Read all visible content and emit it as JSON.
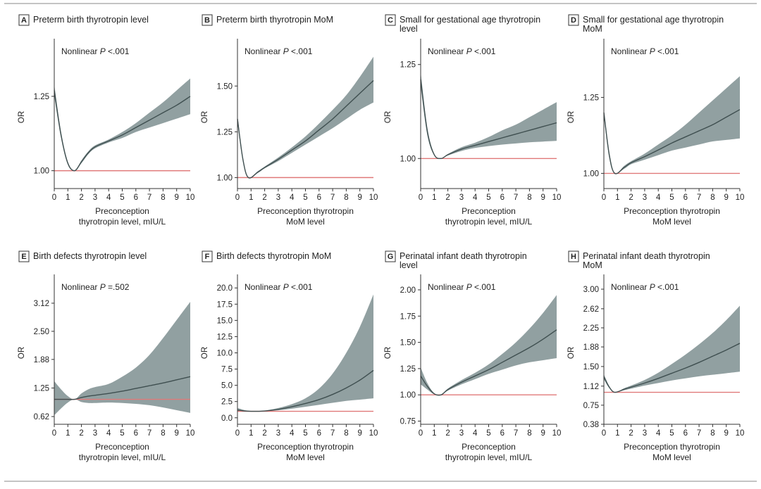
{
  "colors": {
    "band": "#8b9b9c",
    "line": "#3f4f50",
    "reference": "#e07a7a",
    "axis": "#333333",
    "border": "#888888"
  },
  "chart_data": [
    {
      "letter": "A",
      "title": [
        "Preterm birth thyrotropin level"
      ],
      "type": "line",
      "annotation_prefix": "Nonlinear ",
      "annotation_p": "P",
      "annotation_value": " <.001",
      "ylabel": "OR",
      "xlabel": [
        "Preconception",
        "thyrotropin level, mIU/L"
      ],
      "xlim": [
        0,
        10
      ],
      "ylim": [
        0.94,
        1.42
      ],
      "xticks": [
        0,
        1,
        2,
        3,
        4,
        5,
        6,
        7,
        8,
        9,
        10
      ],
      "yticks": [
        {
          "v": 1.0,
          "label": "1.00"
        },
        {
          "v": 1.25,
          "label": "1.25"
        }
      ],
      "reference": 1.0,
      "x": [
        0,
        0.5,
        1,
        1.5,
        2,
        2.5,
        3,
        4,
        5,
        6,
        7,
        8,
        9,
        10
      ],
      "y": [
        1.27,
        1.12,
        1.025,
        1.0,
        1.03,
        1.06,
        1.08,
        1.1,
        1.12,
        1.145,
        1.17,
        1.195,
        1.22,
        1.25
      ],
      "lower": [
        1.25,
        1.11,
        1.02,
        1.0,
        1.025,
        1.055,
        1.075,
        1.095,
        1.11,
        1.13,
        1.145,
        1.16,
        1.175,
        1.19
      ],
      "upper": [
        1.29,
        1.13,
        1.03,
        1.0,
        1.035,
        1.065,
        1.085,
        1.105,
        1.13,
        1.16,
        1.195,
        1.23,
        1.27,
        1.31
      ]
    },
    {
      "letter": "B",
      "title": [
        "Preterm birth thyrotropin MoM"
      ],
      "type": "line",
      "annotation_prefix": "Nonlinear ",
      "annotation_p": "P",
      "annotation_value": " <.001",
      "ylabel": "OR",
      "xlabel": [
        "Preconception thyrotropin",
        "MoM level"
      ],
      "xlim": [
        0,
        10
      ],
      "ylim": [
        0.94,
        1.72
      ],
      "xticks": [
        0,
        1,
        2,
        3,
        4,
        5,
        6,
        7,
        8,
        9,
        10
      ],
      "yticks": [
        {
          "v": 1.0,
          "label": "1.00"
        },
        {
          "v": 1.25,
          "label": "1.25"
        },
        {
          "v": 1.5,
          "label": "1.50"
        }
      ],
      "reference": 1.0,
      "x": [
        0,
        0.4,
        0.8,
        1.5,
        2,
        3,
        4,
        5,
        6,
        7,
        8,
        9,
        10
      ],
      "y": [
        1.32,
        1.1,
        1.0,
        1.03,
        1.055,
        1.1,
        1.15,
        1.2,
        1.26,
        1.32,
        1.39,
        1.46,
        1.53
      ],
      "lower": [
        1.3,
        1.09,
        1.0,
        1.025,
        1.05,
        1.09,
        1.135,
        1.18,
        1.225,
        1.27,
        1.32,
        1.37,
        1.41
      ],
      "upper": [
        1.34,
        1.11,
        1.0,
        1.035,
        1.06,
        1.11,
        1.165,
        1.225,
        1.295,
        1.37,
        1.45,
        1.55,
        1.66
      ]
    },
    {
      "letter": "C",
      "title": [
        "Small for gestational age thyrotropin",
        "level"
      ],
      "type": "line",
      "annotation_prefix": "Nonlinear ",
      "annotation_p": "P",
      "annotation_value": " <.001",
      "ylabel": "OR",
      "xlabel": [
        "Preconception",
        "thyrotropin level, mIU/L"
      ],
      "xlim": [
        0,
        10
      ],
      "ylim": [
        0.92,
        1.3
      ],
      "xticks": [
        0,
        1,
        2,
        3,
        4,
        5,
        6,
        7,
        8,
        9,
        10
      ],
      "yticks": [
        {
          "v": 1.0,
          "label": "1.00"
        },
        {
          "v": 1.25,
          "label": "1.25"
        }
      ],
      "reference": 1.0,
      "x": [
        0,
        0.5,
        1,
        1.5,
        2,
        3,
        4,
        5,
        6,
        7,
        8,
        9,
        10
      ],
      "y": [
        1.21,
        1.07,
        1.01,
        1.0,
        1.01,
        1.025,
        1.035,
        1.045,
        1.055,
        1.065,
        1.075,
        1.085,
        1.095
      ],
      "lower": [
        1.19,
        1.06,
        1.008,
        1.0,
        1.008,
        1.02,
        1.028,
        1.033,
        1.037,
        1.04,
        1.043,
        1.045,
        1.047
      ],
      "upper": [
        1.23,
        1.08,
        1.012,
        1.0,
        1.012,
        1.03,
        1.042,
        1.057,
        1.075,
        1.09,
        1.11,
        1.13,
        1.15
      ]
    },
    {
      "letter": "D",
      "title": [
        "Small for gestational age thyrotropin",
        "MoM"
      ],
      "type": "line",
      "annotation_prefix": "Nonlinear ",
      "annotation_p": "P",
      "annotation_value": " <.001",
      "ylabel": "OR",
      "xlabel": [
        "Preconception thyrotropin",
        "MoM level"
      ],
      "xlim": [
        0,
        10
      ],
      "ylim": [
        0.95,
        1.42
      ],
      "xticks": [
        0,
        1,
        2,
        3,
        4,
        5,
        6,
        7,
        8,
        9,
        10
      ],
      "yticks": [
        {
          "v": 1.0,
          "label": "1.00"
        },
        {
          "v": 1.25,
          "label": "1.25"
        }
      ],
      "reference": 1.0,
      "x": [
        0,
        0.4,
        0.8,
        1.5,
        2,
        3,
        4,
        5,
        6,
        7,
        8,
        9,
        10
      ],
      "y": [
        1.2,
        1.06,
        1.0,
        1.02,
        1.035,
        1.055,
        1.077,
        1.1,
        1.12,
        1.14,
        1.16,
        1.185,
        1.21
      ],
      "lower": [
        1.19,
        1.05,
        1.0,
        1.015,
        1.03,
        1.045,
        1.06,
        1.075,
        1.085,
        1.095,
        1.105,
        1.11,
        1.115
      ],
      "upper": [
        1.21,
        1.07,
        1.0,
        1.025,
        1.04,
        1.065,
        1.095,
        1.125,
        1.16,
        1.2,
        1.24,
        1.28,
        1.32
      ]
    },
    {
      "letter": "E",
      "title": [
        "Birth defects thyrotropin level"
      ],
      "type": "line",
      "annotation_prefix": "Nonlinear ",
      "annotation_p": "P",
      "annotation_value": " =.502",
      "ylabel": "OR",
      "xlabel": [
        "Preconception",
        "thyrotropin level, mIU/L"
      ],
      "xlim": [
        0,
        10
      ],
      "ylim": [
        0.45,
        3.6
      ],
      "xticks": [
        0,
        1,
        2,
        3,
        4,
        5,
        6,
        7,
        8,
        9,
        10
      ],
      "yticks": [
        {
          "v": 0.62,
          "label": "0.62"
        },
        {
          "v": 1.25,
          "label": "1.25"
        },
        {
          "v": 1.88,
          "label": "1.88"
        },
        {
          "v": 2.5,
          "label": "2.50"
        },
        {
          "v": 3.12,
          "label": "3.12"
        }
      ],
      "reference": 1.0,
      "x": [
        0,
        0.5,
        1,
        1.5,
        2,
        2.5,
        3,
        4,
        5,
        6,
        7,
        8,
        9,
        10
      ],
      "y": [
        1.0,
        1.0,
        1.0,
        1.0,
        1.04,
        1.07,
        1.09,
        1.13,
        1.18,
        1.24,
        1.3,
        1.36,
        1.43,
        1.5
      ],
      "lower": [
        0.65,
        0.8,
        0.93,
        1.0,
        0.94,
        0.92,
        0.92,
        0.93,
        0.92,
        0.9,
        0.87,
        0.82,
        0.76,
        0.7
      ],
      "upper": [
        1.4,
        1.22,
        1.07,
        1.0,
        1.13,
        1.22,
        1.27,
        1.34,
        1.5,
        1.7,
        1.98,
        2.35,
        2.75,
        3.15
      ]
    },
    {
      "letter": "F",
      "title": [
        "Birth defects thyrotropin MoM"
      ],
      "type": "line",
      "annotation_prefix": "Nonlinear ",
      "annotation_p": "P",
      "annotation_value": " <.001",
      "ylabel": "OR",
      "xlabel": [
        "Preconception thyrotropin",
        "MoM level"
      ],
      "xlim": [
        0,
        10
      ],
      "ylim": [
        -1,
        21
      ],
      "xticks": [
        0,
        1,
        2,
        3,
        4,
        5,
        6,
        7,
        8,
        9,
        10
      ],
      "yticks": [
        {
          "v": 0,
          "label": "0.0"
        },
        {
          "v": 2.5,
          "label": "2.5"
        },
        {
          "v": 5,
          "label": "5.0"
        },
        {
          "v": 7.5,
          "label": "7.5"
        },
        {
          "v": 10,
          "label": "10.0"
        },
        {
          "v": 12.5,
          "label": "12.5"
        },
        {
          "v": 15,
          "label": "15.0"
        },
        {
          "v": 17.5,
          "label": "17.5"
        },
        {
          "v": 20,
          "label": "20.0"
        }
      ],
      "reference": 1.0,
      "x": [
        0,
        0.5,
        1,
        1.5,
        2,
        3,
        4,
        5,
        6,
        7,
        8,
        9,
        10
      ],
      "y": [
        1.2,
        1.05,
        1.0,
        1.0,
        1.05,
        1.3,
        1.7,
        2.2,
        2.8,
        3.6,
        4.6,
        5.8,
        7.3
      ],
      "lower": [
        1.0,
        0.95,
        0.95,
        1.0,
        1.0,
        1.15,
        1.4,
        1.7,
        2.0,
        2.3,
        2.6,
        2.8,
        3.0
      ],
      "upper": [
        1.5,
        1.2,
        1.05,
        1.0,
        1.1,
        1.5,
        2.1,
        3.0,
        4.5,
        6.8,
        10.0,
        14.0,
        19.0
      ]
    },
    {
      "letter": "G",
      "title": [
        "Perinatal infant death thyrotropin",
        "level"
      ],
      "type": "line",
      "annotation_prefix": "Nonlinear ",
      "annotation_p": "P",
      "annotation_value": " <.001",
      "ylabel": "OR",
      "xlabel": [
        "Preconception",
        "thyrotropin level, mIU/L"
      ],
      "xlim": [
        0,
        10
      ],
      "ylim": [
        0.72,
        2.08
      ],
      "xticks": [
        0,
        1,
        2,
        3,
        4,
        5,
        6,
        7,
        8,
        9,
        10
      ],
      "yticks": [
        {
          "v": 0.75,
          "label": "0.75"
        },
        {
          "v": 1.0,
          "label": "1.00"
        },
        {
          "v": 1.25,
          "label": "1.25"
        },
        {
          "v": 1.5,
          "label": "1.50"
        },
        {
          "v": 1.75,
          "label": "1.75"
        },
        {
          "v": 2.0,
          "label": "2.00"
        }
      ],
      "reference": 1.0,
      "x": [
        0,
        0.5,
        1,
        1.5,
        2,
        3,
        4,
        5,
        6,
        7,
        8,
        9,
        10
      ],
      "y": [
        1.18,
        1.08,
        1.01,
        1.0,
        1.05,
        1.12,
        1.18,
        1.24,
        1.31,
        1.38,
        1.45,
        1.53,
        1.62
      ],
      "lower": [
        1.1,
        1.05,
        1.005,
        1.0,
        1.04,
        1.1,
        1.15,
        1.2,
        1.24,
        1.28,
        1.31,
        1.33,
        1.35
      ],
      "upper": [
        1.26,
        1.11,
        1.015,
        1.0,
        1.06,
        1.14,
        1.21,
        1.29,
        1.39,
        1.5,
        1.63,
        1.78,
        1.95
      ]
    },
    {
      "letter": "H",
      "title": [
        "Perinatal infant death thyrotropin",
        "MoM"
      ],
      "type": "line",
      "annotation_prefix": "Nonlinear ",
      "annotation_p": "P",
      "annotation_value": " <.001",
      "ylabel": "OR",
      "xlabel": [
        "Preconception thyrotropin",
        "MoM level"
      ],
      "xlim": [
        0,
        10
      ],
      "ylim": [
        0.38,
        3.15
      ],
      "xticks": [
        0,
        1,
        2,
        3,
        4,
        5,
        6,
        7,
        8,
        9,
        10
      ],
      "yticks": [
        {
          "v": 0.38,
          "label": "0.38"
        },
        {
          "v": 0.75,
          "label": "0.75"
        },
        {
          "v": 1.12,
          "label": "1.12"
        },
        {
          "v": 1.5,
          "label": "1.50"
        },
        {
          "v": 1.88,
          "label": "1.88"
        },
        {
          "v": 2.25,
          "label": "2.25"
        },
        {
          "v": 2.62,
          "label": "2.62"
        },
        {
          "v": 3.0,
          "label": "3.00"
        }
      ],
      "reference": 1.0,
      "x": [
        0,
        0.4,
        0.8,
        1.5,
        2,
        3,
        4,
        5,
        6,
        7,
        8,
        9,
        10
      ],
      "y": [
        1.3,
        1.1,
        1.0,
        1.06,
        1.1,
        1.18,
        1.27,
        1.37,
        1.47,
        1.58,
        1.7,
        1.82,
        1.95
      ],
      "lower": [
        1.25,
        1.08,
        1.0,
        1.04,
        1.07,
        1.13,
        1.18,
        1.23,
        1.27,
        1.31,
        1.34,
        1.37,
        1.4
      ],
      "upper": [
        1.35,
        1.12,
        1.0,
        1.08,
        1.13,
        1.24,
        1.38,
        1.55,
        1.73,
        1.93,
        2.15,
        2.4,
        2.68
      ]
    }
  ]
}
